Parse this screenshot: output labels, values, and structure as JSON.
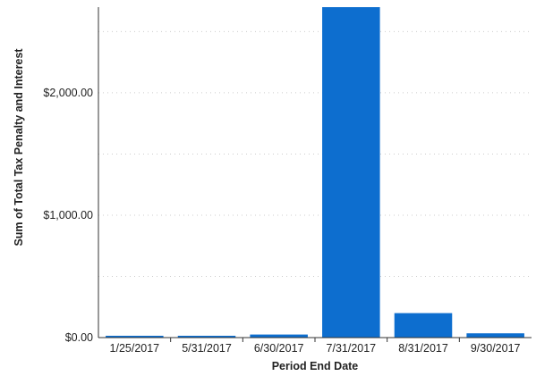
{
  "chart_data": {
    "type": "bar",
    "title": "",
    "xlabel": "Period End Date",
    "ylabel": "Sum of Total Tax Penalty and Interest",
    "categories": [
      "1/25/2017",
      "5/31/2017",
      "6/30/2017",
      "7/31/2017",
      "8/31/2017",
      "9/30/2017"
    ],
    "values": [
      15,
      15,
      25,
      3000,
      200,
      35
    ],
    "ylim": [
      0,
      2700
    ],
    "yticks": [
      0,
      1000,
      2000
    ],
    "ytick_labels": [
      "$0.00",
      "$1,000.00",
      "$2,000.00"
    ],
    "grid": true,
    "bar_color": "#0d6ecf",
    "grid_color": "#cccccc",
    "axis_color": "#333333"
  }
}
